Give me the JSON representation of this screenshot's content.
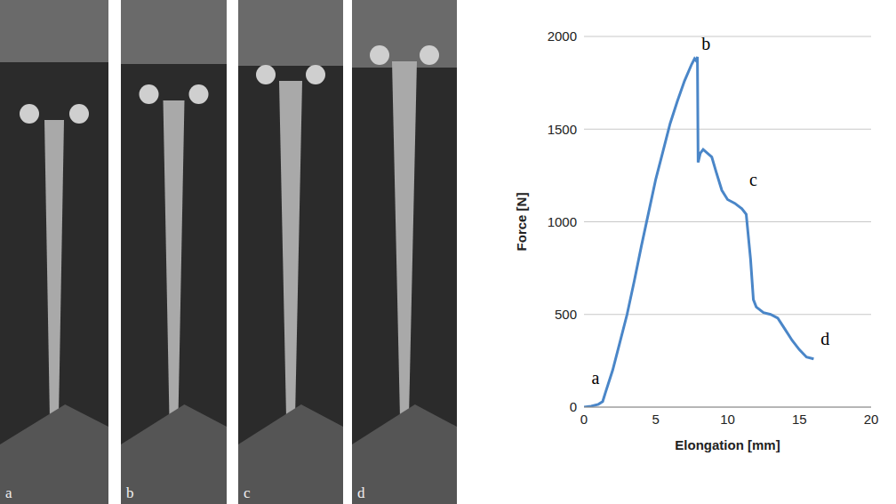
{
  "photos": {
    "labels": [
      "a",
      "b",
      "c",
      "d"
    ]
  },
  "chart_data": {
    "type": "line",
    "x_label": "Elongation [mm]",
    "y_label": "Force [N]",
    "x": [
      0,
      0.5,
      1,
      1.3,
      1.5,
      2,
      2.5,
      3,
      3.5,
      4,
      4.5,
      5,
      5.5,
      6,
      6.5,
      7,
      7.5,
      7.7,
      7.8,
      7.9,
      7.95,
      8.1,
      8.3,
      8.6,
      8.9,
      9.2,
      9.6,
      10,
      10.5,
      11,
      11.3,
      11.6,
      11.8,
      12,
      12.5,
      13,
      13.5,
      14,
      14.5,
      15,
      15.5,
      16
    ],
    "values": [
      0,
      5,
      15,
      30,
      80,
      200,
      350,
      500,
      680,
      870,
      1050,
      1230,
      1380,
      1530,
      1650,
      1760,
      1850,
      1880,
      1870,
      1890,
      1320,
      1370,
      1390,
      1370,
      1350,
      1270,
      1170,
      1120,
      1100,
      1070,
      1040,
      800,
      580,
      540,
      510,
      500,
      480,
      420,
      360,
      310,
      270,
      260
    ],
    "color": "#4a86c8",
    "xlim": [
      0,
      20
    ],
    "xticks": [
      0,
      5,
      10,
      15,
      20
    ],
    "ylim": [
      0,
      2000
    ],
    "yticks": [
      0,
      500,
      1000,
      1500,
      2000
    ],
    "grid": true,
    "annotations": [
      {
        "text": "a",
        "x": 0.8,
        "y": 160
      },
      {
        "text": "b",
        "x": 8.5,
        "y": 1960
      },
      {
        "text": "c",
        "x": 11.8,
        "y": 1230
      },
      {
        "text": "d",
        "x": 16.8,
        "y": 370
      }
    ]
  }
}
